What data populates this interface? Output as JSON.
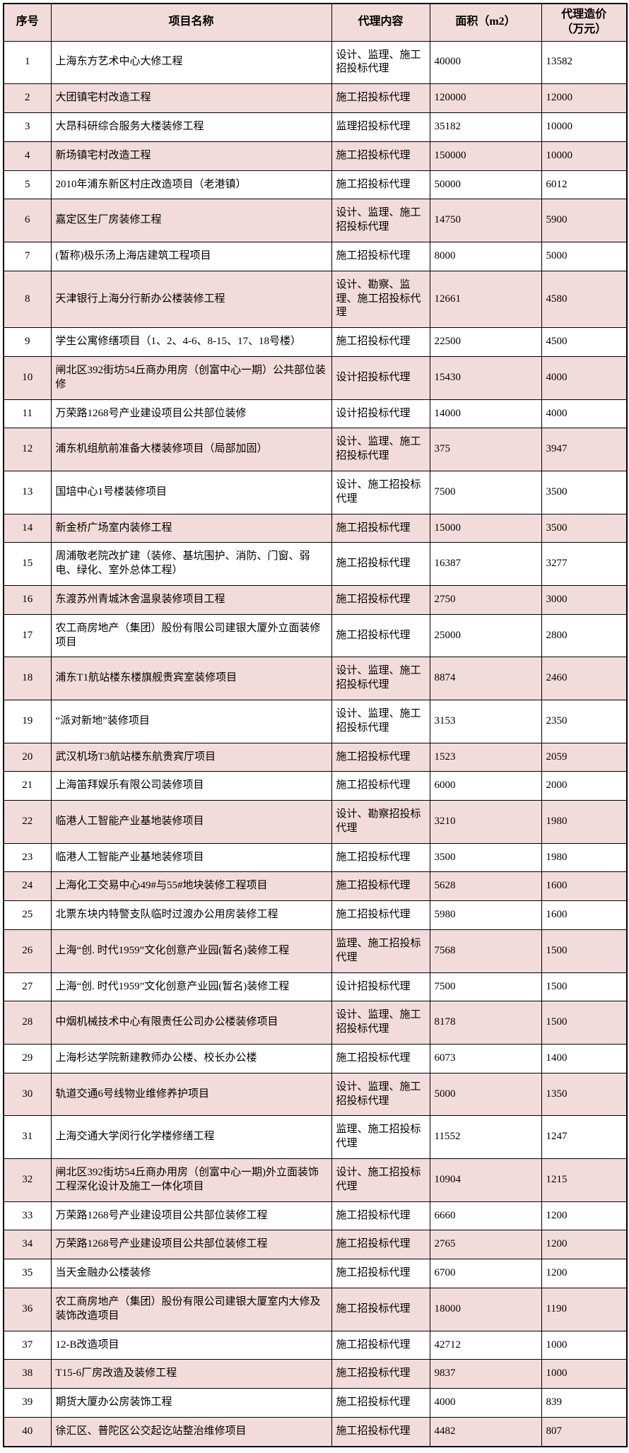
{
  "table": {
    "headers": [
      "序号",
      "项目名称",
      "代理内容",
      "面积（m2）",
      "代理造价\n（万元）"
    ],
    "column_keys": [
      "no",
      "name",
      "agency",
      "area",
      "cost"
    ],
    "colors": {
      "header_bg": "#f2dcdb",
      "alt_row_bg": "#f2dcdb",
      "row_bg": "#ffffff",
      "border": "#000000",
      "text": "#000000"
    },
    "rows": [
      {
        "no": "1",
        "name": "上海东方艺术中心大修工程",
        "agency": "设计、监理、施工招投标代理",
        "area": "40000",
        "cost": "13582"
      },
      {
        "no": "2",
        "name": "大团镇宅村改造工程",
        "agency": "施工招投标代理",
        "area": "120000",
        "cost": "12000"
      },
      {
        "no": "3",
        "name": "大昂科研综合服务大楼装修工程",
        "agency": "监理招投标代理",
        "area": "35182",
        "cost": "10000"
      },
      {
        "no": "4",
        "name": "新场镇宅村改造工程",
        "agency": "施工招投标代理",
        "area": "150000",
        "cost": "10000"
      },
      {
        "no": "5",
        "name": "2010年浦东新区村庄改造项目（老港镇）",
        "agency": "施工招投标代理",
        "area": "50000",
        "cost": "6012"
      },
      {
        "no": "6",
        "name": "嘉定区生厂房装修工程",
        "agency": "设计、监理、施工招投标代理",
        "area": "14750",
        "cost": "5900"
      },
      {
        "no": "7",
        "name": "(暂称)极乐汤上海店建筑工程项目",
        "agency": "施工招投标代理",
        "area": "8000",
        "cost": "5000"
      },
      {
        "no": "8",
        "name": "天津银行上海分行新办公楼装修工程",
        "agency": "设计、勘察、监理、施工招投标代理",
        "area": "12661",
        "cost": "4580"
      },
      {
        "no": "9",
        "name": "学生公寓修缮项目（1、2、4-6、8-15、17、18号楼）",
        "agency": "施工招投标代理",
        "area": "22500",
        "cost": "4500"
      },
      {
        "no": "10",
        "name": "闸北区392街坊54丘商办用房（创富中心一期）公共部位装修",
        "agency": "设计招投标代理",
        "area": "15430",
        "cost": "4000"
      },
      {
        "no": "11",
        "name": "万荣路1268号产业建设项目公共部位装修",
        "agency": "设计招投标代理",
        "area": "14000",
        "cost": "4000"
      },
      {
        "no": "12",
        "name": "浦东机组航前准备大楼装修项目（局部加固）",
        "agency": "设计、监理、施工招投标代理",
        "area": "375",
        "cost": "3947"
      },
      {
        "no": "13",
        "name": "国培中心1号楼装修项目",
        "agency": "设计、施工招投标代理",
        "area": "7500",
        "cost": "3500"
      },
      {
        "no": "14",
        "name": "新金桥广场室内装修工程",
        "agency": "施工招投标代理",
        "area": "15000",
        "cost": "3500"
      },
      {
        "no": "15",
        "name": "周浦敬老院改扩建（装修、基坑围护、消防、门窗、弱电、绿化、室外总体工程）",
        "agency": "施工招投标代理",
        "area": "16387",
        "cost": "3277"
      },
      {
        "no": "16",
        "name": "东渡苏州青城沐舍温泉装修项目工程",
        "agency": "施工招投标代理",
        "area": "2750",
        "cost": "3000"
      },
      {
        "no": "17",
        "name": "农工商房地产（集团）股份有限公司建银大厦外立面装修项目",
        "agency": "施工招投标代理",
        "area": "25000",
        "cost": "2800"
      },
      {
        "no": "18",
        "name": "浦东T1航站楼东楼旗舰贵宾室装修项目",
        "agency": "设计、监理、施工招投标代理",
        "area": "8874",
        "cost": "2460"
      },
      {
        "no": "19",
        "name": "“派对新地”装修项目",
        "agency": "设计、监理、施工招投标代理",
        "area": "3153",
        "cost": "2350"
      },
      {
        "no": "20",
        "name": "武汉机场T3航站楼东航贵宾厅项目",
        "agency": "施工招投标代理",
        "area": "1523",
        "cost": "2059"
      },
      {
        "no": "21",
        "name": "上海笛拜娱乐有限公司装修项目",
        "agency": "施工招投标代理",
        "area": "6000",
        "cost": "2000"
      },
      {
        "no": "22",
        "name": "临港人工智能产业基地装修项目",
        "agency": "设计、勘察招投标代理",
        "area": "3210",
        "cost": "1980"
      },
      {
        "no": "23",
        "name": "临港人工智能产业基地装修项目",
        "agency": "施工招投标代理",
        "area": "3500",
        "cost": "1980"
      },
      {
        "no": "24",
        "name": "上海化工交易中心49#与55#地块装修工程项目",
        "agency": "施工招投标代理",
        "area": "5628",
        "cost": "1600"
      },
      {
        "no": "25",
        "name": "北票东块内特警支队临时过渡办公用房装修工程",
        "agency": "施工招投标代理",
        "area": "5980",
        "cost": "1600"
      },
      {
        "no": "26",
        "name": "上海“创. 时代1959”文化创意产业园(暂名)装修工程",
        "agency": "监理、施工招投标代理",
        "area": "7568",
        "cost": "1500"
      },
      {
        "no": "27",
        "name": "上海“创. 时代1959”文化创意产业园(暂名)装修工程",
        "agency": "设计招投标代理",
        "area": "7500",
        "cost": "1500"
      },
      {
        "no": "28",
        "name": "中烟机械技术中心有限责任公司办公楼装修项目",
        "agency": "设计、监理、施工招投标代理",
        "area": "8178",
        "cost": "1500"
      },
      {
        "no": "29",
        "name": "上海杉达学院新建教师办公楼、校长办公楼",
        "agency": "施工招投标代理",
        "area": "6073",
        "cost": "1400"
      },
      {
        "no": "30",
        "name": "轨道交通6号线物业维修养护项目",
        "agency": "设计、监理、施工招投标代理",
        "area": "5000",
        "cost": "1350"
      },
      {
        "no": "31",
        "name": "上海交通大学闵行化学楼修缮工程",
        "agency": "监理、施工招投标代理",
        "area": "11552",
        "cost": "1247"
      },
      {
        "no": "32",
        "name": "闸北区392街坊54丘商办用房（创富中心一期)外立面装饰工程深化设计及施工一体化项目",
        "agency": "设计、施工招投标代理",
        "area": "10904",
        "cost": "1215"
      },
      {
        "no": "33",
        "name": "万荣路1268号产业建设项目公共部位装修工程",
        "agency": "施工招投标代理",
        "area": "6660",
        "cost": "1200"
      },
      {
        "no": "34",
        "name": "万荣路1268号产业建设项目公共部位装修工程",
        "agency": "施工招投标代理",
        "area": "2765",
        "cost": "1200"
      },
      {
        "no": "35",
        "name": "当天金融办公楼装修",
        "agency": "施工招投标代理",
        "area": "6700",
        "cost": "1200"
      },
      {
        "no": "36",
        "name": "农工商房地产（集团）股份有限公司建银大厦室内大修及装饰改造项目",
        "agency": "施工招投标代理",
        "area": "18000",
        "cost": "1190"
      },
      {
        "no": "37",
        "name": "12-B改造项目",
        "agency": "施工招投标代理",
        "area": "42712",
        "cost": "1000"
      },
      {
        "no": "38",
        "name": "T15-6厂房改造及装修工程",
        "agency": "施工招投标代理",
        "area": "9837",
        "cost": "1000"
      },
      {
        "no": "39",
        "name": "期货大厦办公房装饰工程",
        "agency": "施工招投标代理",
        "area": "4000",
        "cost": "839"
      },
      {
        "no": "40",
        "name": "徐汇区、普陀区公交起讫站整治维修项目",
        "agency": "施工招投标代理",
        "area": "4482",
        "cost": "807"
      }
    ]
  }
}
